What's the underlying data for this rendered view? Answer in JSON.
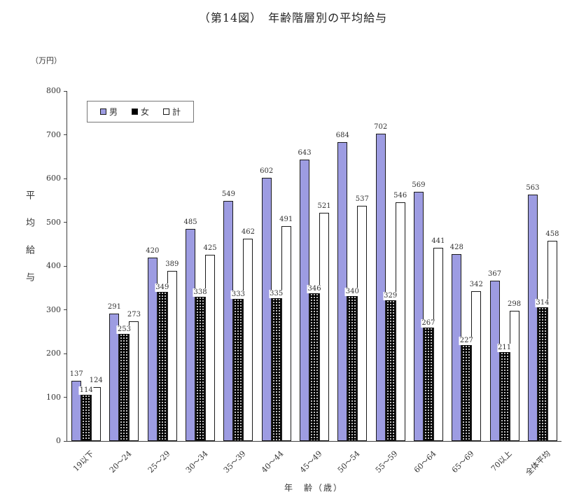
{
  "chart_data": {
    "type": "bar",
    "title": "（第14図）　年齢階層別の平均給与",
    "unit_label": "（万円）",
    "ylabel": "平均給与",
    "xlabel": "年　齢（歳）",
    "ylim": [
      0,
      800
    ],
    "yticks": [
      0,
      100,
      200,
      300,
      400,
      500,
      600,
      700,
      800
    ],
    "grid": false,
    "legend_position": "top-left-inside",
    "categories": [
      "19以下",
      "20〜24",
      "25〜29",
      "30〜34",
      "35〜39",
      "40〜44",
      "45〜49",
      "50〜54",
      "55〜59",
      "60〜64",
      "65〜69",
      "70以上",
      "全体平均"
    ],
    "series": [
      {
        "name": "男",
        "key": "male",
        "color": "#9d9ce2",
        "values": [
          137,
          291,
          420,
          485,
          549,
          602,
          643,
          684,
          702,
          569,
          428,
          367,
          563
        ]
      },
      {
        "name": "女",
        "key": "female",
        "color": "#000000",
        "values": [
          114,
          253,
          349,
          338,
          333,
          335,
          346,
          340,
          329,
          267,
          227,
          211,
          314
        ]
      },
      {
        "name": "計",
        "key": "total",
        "color": "#ffffff",
        "values": [
          124,
          273,
          389,
          425,
          462,
          491,
          521,
          537,
          546,
          441,
          342,
          298,
          458
        ]
      }
    ]
  }
}
